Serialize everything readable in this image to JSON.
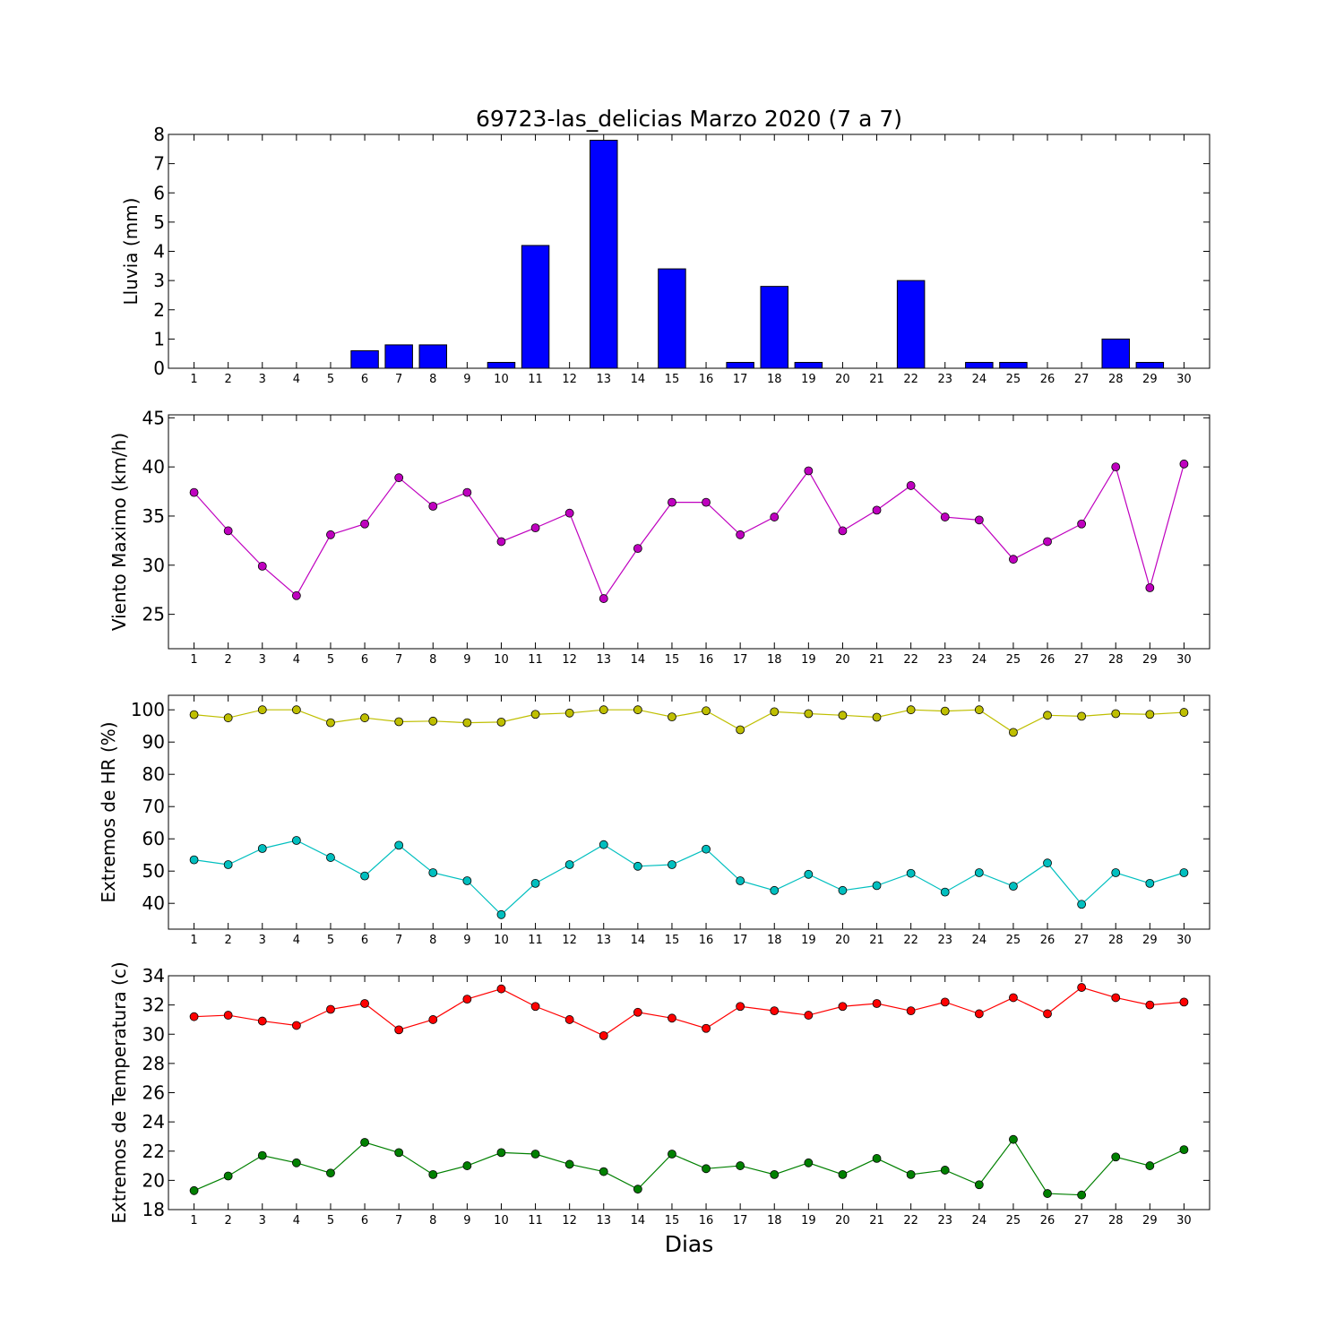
{
  "title": "69723-las_delicias Marzo 2020  (7 a 7)",
  "xlabel": "Dias",
  "chart_data": [
    {
      "type": "bar",
      "ylabel": "Lluvia (mm)",
      "ylim": [
        0,
        8
      ],
      "yticks": [
        0,
        1,
        2,
        3,
        4,
        5,
        6,
        7,
        8
      ],
      "categories": [
        1,
        2,
        3,
        4,
        5,
        6,
        7,
        8,
        9,
        10,
        11,
        12,
        13,
        14,
        15,
        16,
        17,
        18,
        19,
        20,
        21,
        22,
        23,
        24,
        25,
        26,
        27,
        28,
        29,
        30
      ],
      "series": [
        {
          "color": "#0000ff",
          "values": [
            0,
            0,
            0,
            0,
            0,
            0.6,
            0.8,
            0.8,
            0,
            0.2,
            4.2,
            0,
            7.8,
            0,
            3.4,
            0,
            0.2,
            2.8,
            0.2,
            0,
            0,
            3.0,
            0,
            0.2,
            0.2,
            0,
            0,
            1.0,
            0.2,
            0
          ]
        }
      ]
    },
    {
      "type": "line",
      "ylabel": "Viento Maximo (km/h)",
      "ylim": [
        21.5,
        45.3
      ],
      "yticks": [
        25,
        30,
        35,
        40,
        45
      ],
      "categories": [
        1,
        2,
        3,
        4,
        5,
        6,
        7,
        8,
        9,
        10,
        11,
        12,
        13,
        14,
        15,
        16,
        17,
        18,
        19,
        20,
        21,
        22,
        23,
        24,
        25,
        26,
        27,
        28,
        29,
        30
      ],
      "series": [
        {
          "color": "#bf00bf",
          "values": [
            37.4,
            33.5,
            29.9,
            26.9,
            33.1,
            34.2,
            38.9,
            36.0,
            37.4,
            32.4,
            33.8,
            35.3,
            26.6,
            31.7,
            36.4,
            36.4,
            33.1,
            34.9,
            39.6,
            33.5,
            35.6,
            38.1,
            34.9,
            34.6,
            30.6,
            32.4,
            34.2,
            40.0,
            27.7,
            40.3
          ]
        }
      ]
    },
    {
      "type": "line",
      "ylabel": "Extremos de HR (%)",
      "ylim": [
        32,
        104.5
      ],
      "yticks": [
        40,
        50,
        60,
        70,
        80,
        90,
        100
      ],
      "categories": [
        1,
        2,
        3,
        4,
        5,
        6,
        7,
        8,
        9,
        10,
        11,
        12,
        13,
        14,
        15,
        16,
        17,
        18,
        19,
        20,
        21,
        22,
        23,
        24,
        25,
        26,
        27,
        28,
        29,
        30
      ],
      "series": [
        {
          "color": "#bfbf00",
          "values": [
            98.5,
            97.5,
            100,
            100,
            96,
            97.5,
            96.3,
            96.5,
            96,
            96.2,
            98.6,
            99,
            100,
            100,
            97.8,
            99.7,
            93.8,
            99.4,
            98.8,
            98.3,
            97.7,
            100,
            99.6,
            100,
            93,
            98.3,
            98,
            98.8,
            98.6,
            99.2
          ]
        },
        {
          "color": "#00bfbf",
          "values": [
            53.5,
            52,
            57,
            59.5,
            54.2,
            48.5,
            58,
            49.5,
            47,
            36.5,
            46.2,
            52,
            58.2,
            51.5,
            52,
            56.8,
            47,
            44,
            49,
            44,
            45.5,
            49.3,
            43.5,
            49.5,
            45.3,
            52.5,
            39.7,
            49.5,
            46.2,
            49.5
          ]
        }
      ]
    },
    {
      "type": "line",
      "ylabel": "Extremos de Temperatura (c)",
      "ylim": [
        18,
        34
      ],
      "yticks": [
        18,
        20,
        22,
        24,
        26,
        28,
        30,
        32,
        34
      ],
      "categories": [
        1,
        2,
        3,
        4,
        5,
        6,
        7,
        8,
        9,
        10,
        11,
        12,
        13,
        14,
        15,
        16,
        17,
        18,
        19,
        20,
        21,
        22,
        23,
        24,
        25,
        26,
        27,
        28,
        29,
        30
      ],
      "series": [
        {
          "color": "#ff0000",
          "values": [
            31.2,
            31.3,
            30.9,
            30.6,
            31.7,
            32.1,
            30.3,
            31.0,
            32.4,
            33.1,
            31.9,
            31.0,
            29.9,
            31.5,
            31.1,
            30.4,
            31.9,
            31.6,
            31.3,
            31.9,
            32.1,
            31.6,
            32.2,
            31.4,
            32.5,
            31.4,
            33.2,
            32.5,
            32.0,
            32.2
          ]
        },
        {
          "color": "#008000",
          "values": [
            19.3,
            20.3,
            21.7,
            21.2,
            20.5,
            22.6,
            21.9,
            20.4,
            21.0,
            21.9,
            21.8,
            21.1,
            20.6,
            19.4,
            21.8,
            20.8,
            21.0,
            20.4,
            21.2,
            20.4,
            21.5,
            20.4,
            20.7,
            19.7,
            22.8,
            19.1,
            19.0,
            21.6,
            21.0,
            22.1
          ]
        }
      ]
    }
  ]
}
